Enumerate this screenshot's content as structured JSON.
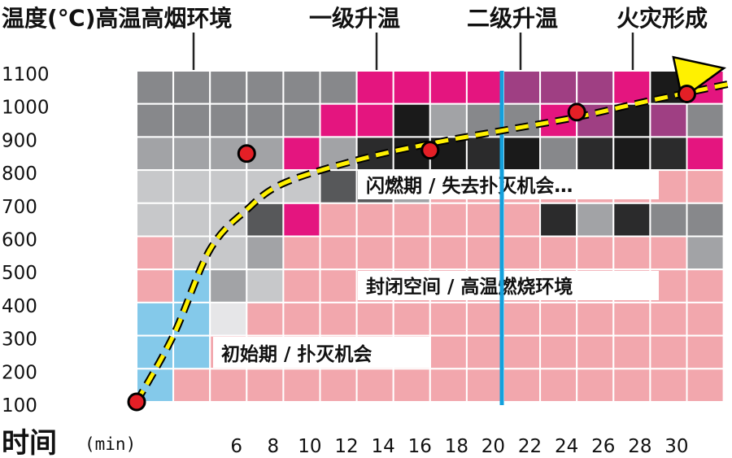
{
  "header": {
    "title": "温度(℃)高温高烟环境",
    "stage1": "一级升温",
    "stage2": "二级升温",
    "stage3": "火灾形成"
  },
  "chart_data": {
    "type": "heatmap",
    "xlabel": "时间",
    "xunit": "(min)",
    "x_ticks": [
      "6",
      "8",
      "10",
      "12",
      "14",
      "16",
      "18",
      "20",
      "22",
      "24",
      "26",
      "28",
      "30"
    ],
    "y_ticks": [
      "1100",
      "1000",
      "900",
      "800",
      "700",
      "600",
      "500",
      "400",
      "300",
      "200",
      "100"
    ],
    "colors": {
      "b": "#84c9ea",
      "p": "#f2a7ad",
      "w": "#e6e6e8",
      "l": "#c7c8ca",
      "m": "#a2a3a6",
      "g": "#87888b",
      "d": "#57585a",
      "k": "#2b2b2c",
      "x": "#1a1a1a",
      "r": "#e4157f",
      "u": "#9f3f83",
      "grid": "#ffffff",
      "curve": "#fff100",
      "dot": "#e41f26",
      "marker_line": "#14a0dc"
    },
    "grid_rows": [
      "ggggggrrrruuurxr",
      "gggggrrxmggruxug",
      "mmmmrmkxxkxgkxkr",
      "lllllddmpppppppp",
      "llldrppppppkmkgg",
      "pllmpppppppppppm",
      "pbmlpppppppppppp",
      "bbwppppppppppppp",
      "bbpppppppppppppp",
      "bppppppppppppppp"
    ],
    "phase_labels": [
      "闪燃期 / 失去扑灭机会…",
      "封闭空间 / 高温燃烧环境",
      "初始期 / 扑灭机会"
    ],
    "marker_x": 20,
    "curve": [
      {
        "x": 0,
        "y": 100
      },
      {
        "x": 2,
        "y": 300
      },
      {
        "x": 4,
        "y": 560
      },
      {
        "x": 6,
        "y": 680
      },
      {
        "x": 8,
        "y": 760
      },
      {
        "x": 12,
        "y": 830
      },
      {
        "x": 16,
        "y": 880
      },
      {
        "x": 20,
        "y": 920
      },
      {
        "x": 24,
        "y": 960
      },
      {
        "x": 28,
        "y": 1010
      },
      {
        "x": 34,
        "y": 1080
      }
    ],
    "curve_label_points": [
      {
        "x": 0,
        "y": 100
      },
      {
        "x": 16,
        "y": 860
      },
      {
        "x": 24,
        "y": 975
      },
      {
        "x": 30,
        "y": 1030
      }
    ],
    "grid_point": {
      "x": 6,
      "y": 850
    },
    "callouts": [
      {
        "target_x": 6,
        "target_y": 850,
        "header": "title"
      },
      {
        "target_x": 16,
        "target_y": 860,
        "header": "stage1"
      },
      {
        "target_x": 24,
        "target_y": 975,
        "header": "stage2"
      },
      {
        "target_x": 30,
        "target_y": 1030,
        "header": "stage3"
      }
    ]
  }
}
